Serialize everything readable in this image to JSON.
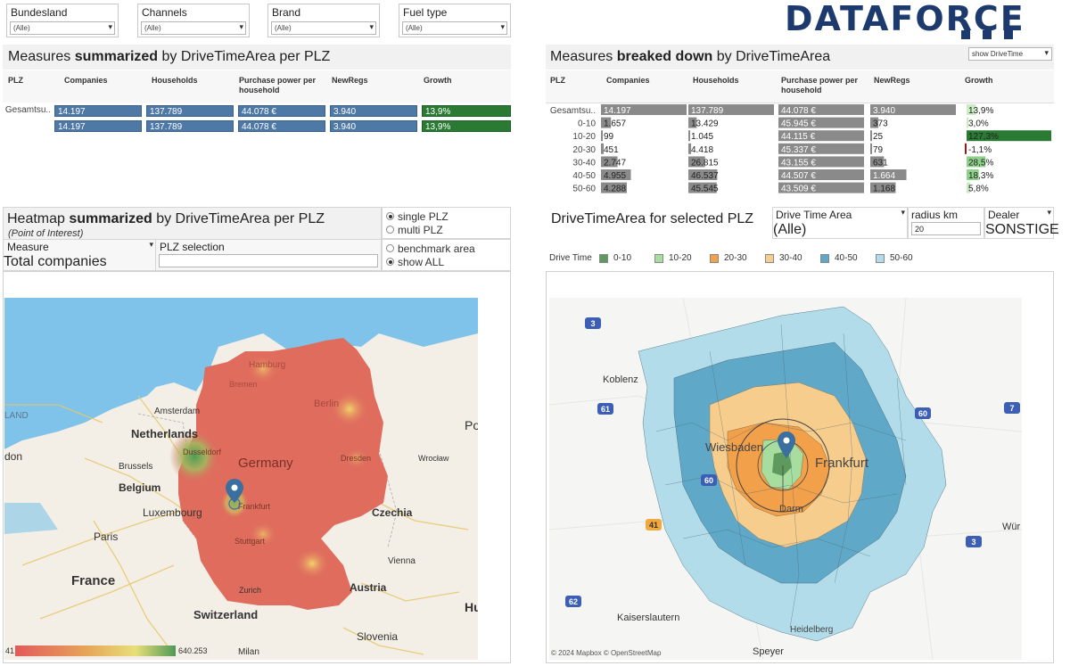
{
  "filters": [
    {
      "label": "Bundesland",
      "value": "(Alle)"
    },
    {
      "label": "Channels",
      "value": "(Alle)"
    },
    {
      "label": "Brand",
      "value": "(Alle)"
    },
    {
      "label": "Fuel type",
      "value": "(Alle)"
    }
  ],
  "logo": {
    "text": "DATAFORCE"
  },
  "summary": {
    "title_pre": "Measures ",
    "title_bold": "summarized",
    "title_post": " by DriveTimeArea per PLZ",
    "headers": {
      "plz": "PLZ",
      "companies": "Companies",
      "households": "Households",
      "purchase": "Purchase power per household",
      "newregs": "NewRegs",
      "growth": "Growth"
    },
    "rows": [
      {
        "label": "Gesamtsu..",
        "companies": "14.197",
        "households": "137.789",
        "purchase": "44.078 €",
        "newregs": "3.940",
        "growth": "13,9%"
      },
      {
        "label": "",
        "companies": "14.197",
        "households": "137.789",
        "purchase": "44.078 €",
        "newregs": "3.940",
        "growth": "13,9%"
      }
    ]
  },
  "breakdown": {
    "title_pre": "Measures ",
    "title_bold": "breaked down",
    "title_post": " by DriveTimeArea",
    "dropdown": "show DriveTime",
    "headers": {
      "plz": "PLZ",
      "companies": "Companies",
      "households": "Households",
      "purchase": "Purchase power per household",
      "newregs": "NewRegs",
      "growth": "Growth"
    },
    "rows": [
      {
        "label": "Gesamtsu..",
        "companies": "14.197",
        "households": "137.789",
        "purchase": "44.078 €",
        "newregs": "3.940",
        "growth": "13,9%"
      },
      {
        "label": "0-10",
        "companies": "1.657",
        "households": "13.429",
        "purchase": "45.945 €",
        "newregs": "373",
        "growth": "3,0%"
      },
      {
        "label": "10-20",
        "companies": "99",
        "households": "1.045",
        "purchase": "44.115 €",
        "newregs": "25",
        "growth": "127,3%"
      },
      {
        "label": "20-30",
        "companies": "451",
        "households": "4.418",
        "purchase": "45.337 €",
        "newregs": "79",
        "growth": "-1,1%"
      },
      {
        "label": "30-40",
        "companies": "2.747",
        "households": "26.815",
        "purchase": "43.155 €",
        "newregs": "631",
        "growth": "28,5%"
      },
      {
        "label": "40-50",
        "companies": "4.955",
        "households": "46.537",
        "purchase": "44.507 €",
        "newregs": "1.664",
        "growth": "18,3%"
      },
      {
        "label": "50-60",
        "companies": "4.288",
        "households": "45.545",
        "purchase": "43.509 €",
        "newregs": "1.168",
        "growth": "5,8%"
      }
    ]
  },
  "heatmap": {
    "title_pre": "Heatmap ",
    "title_bold": "summarized",
    "title_post": " by DriveTimeArea per PLZ",
    "subtitle": "(Point of Interest)",
    "measure_label": "Measure",
    "measure_value": "Total companies",
    "plz_label": "PLZ selection",
    "radios1": [
      {
        "label": "single PLZ",
        "on": true
      },
      {
        "label": "multi PLZ",
        "on": false
      }
    ],
    "radios2": [
      {
        "label": "benchmark area",
        "on": false
      },
      {
        "label": "show ALL",
        "on": true
      }
    ],
    "legend_min": "41",
    "legend_max": "640.253",
    "labels": {
      "ireland": "LAND",
      "netherlands": "Netherlands",
      "amsterdam": "Amsterdam",
      "hamburg": "Hamburg",
      "bremen": "Bremen",
      "berlin": "Berlin",
      "germany": "Germany",
      "dusseldorf": "Dusseldorf",
      "brussels": "Brussels",
      "belgium": "Belgium",
      "luxembourg": "Luxembourg",
      "frankfurt": "Frankfurt",
      "dresden": "Dresden",
      "wroclaw": "Wrocław",
      "czechia": "Czechia",
      "paris": "Paris",
      "stuttgart": "Stuttgart",
      "france": "France",
      "vienna": "Vienna",
      "zurich": "Zurich",
      "austria": "Austria",
      "switzerland": "Switzerland",
      "slovenia": "Slovenia",
      "milan": "Milan",
      "london": "don",
      "poland": "Po",
      "hu": "Hu"
    }
  },
  "dta": {
    "title": "DriveTimeArea for selected PLZ",
    "dta_label": "Drive Time Area",
    "dta_value": "(Alle)",
    "radius_label": "radius km",
    "radius_value": "20",
    "dealer_label": "Dealer",
    "dealer_value": "SONSTIGE",
    "legend_title": "Drive Time",
    "legend": [
      {
        "label": "0-10",
        "color": "#5e9a5e"
      },
      {
        "label": "10-20",
        "color": "#a8dda0"
      },
      {
        "label": "20-30",
        "color": "#f2a04a"
      },
      {
        "label": "30-40",
        "color": "#f7cd8e"
      },
      {
        "label": "40-50",
        "color": "#5fa8c7"
      },
      {
        "label": "50-60",
        "color": "#b3dcea"
      }
    ],
    "labels": {
      "koblenz": "Koblenz",
      "wiesbaden": "Wiesbaden",
      "frankfurt": "Frankfurt",
      "darmstadt": "Darm",
      "kaiserslautern": "Kaiserslautern",
      "speyer": "Speyer",
      "wurz": "Wür",
      "heidelberg": "Heidelberg"
    },
    "roads": [
      "3",
      "61",
      "60",
      "7",
      "41",
      "3",
      "62",
      "60"
    ],
    "credits": "© 2024 Mapbox  © OpenStreetMap"
  }
}
